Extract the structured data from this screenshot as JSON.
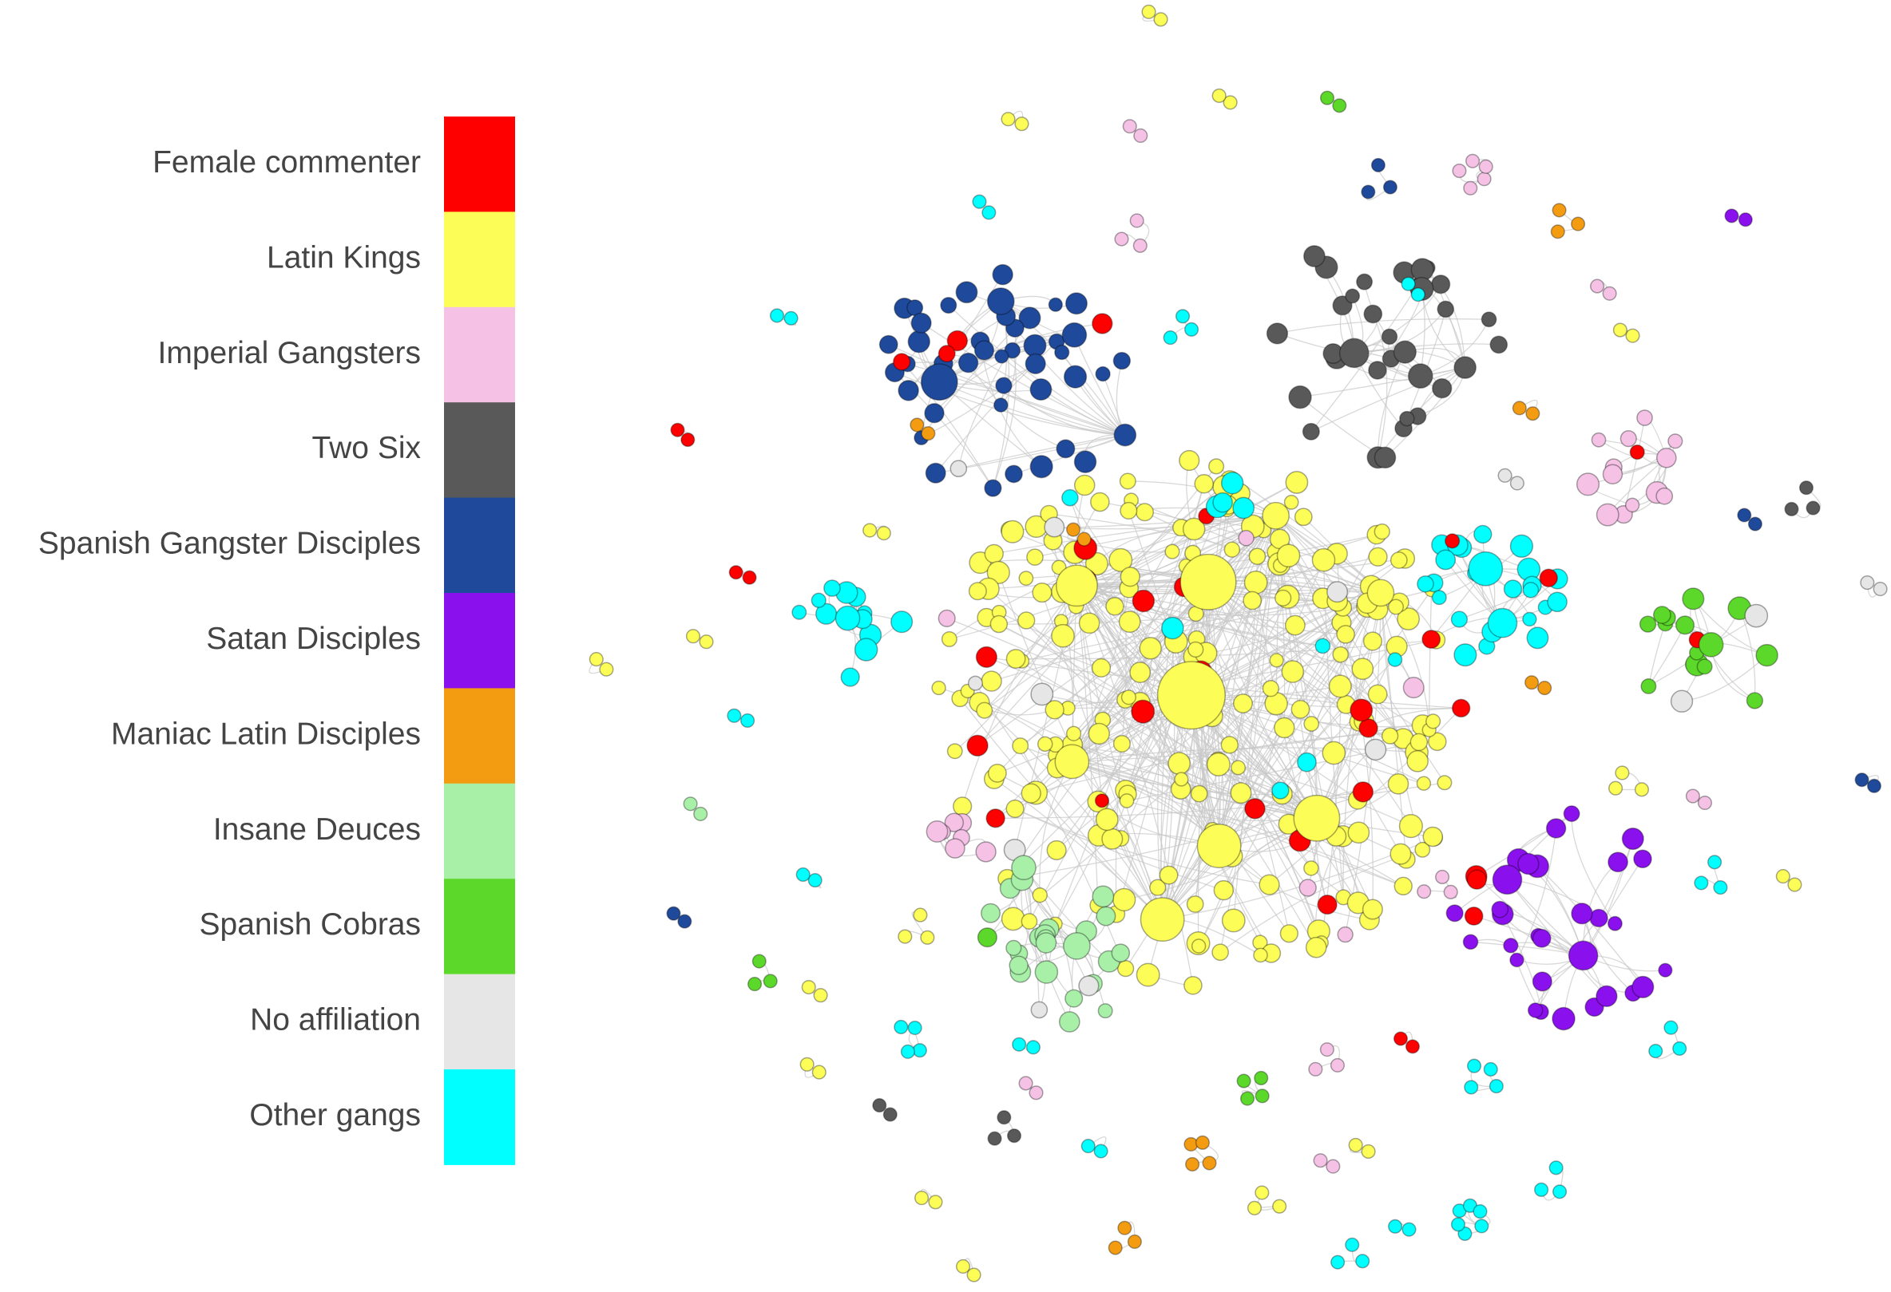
{
  "legend": {
    "items": [
      {
        "label": "Female commenter",
        "color": "#ff0000"
      },
      {
        "label": "Latin Kings",
        "color": "#fdfd58"
      },
      {
        "label": "Imperial Gangsters",
        "color": "#f5c2e6"
      },
      {
        "label": "Two Six",
        "color": "#595959"
      },
      {
        "label": "Spanish Gangster Disciples",
        "color": "#1f4a9c"
      },
      {
        "label": "Satan Disciples",
        "color": "#8a10ee"
      },
      {
        "label": "Maniac Latin Disciples",
        "color": "#f39c12"
      },
      {
        "label": "Insane Deuces",
        "color": "#a8f0a8"
      },
      {
        "label": "Spanish Cobras",
        "color": "#5cd82a"
      },
      {
        "label": "No affiliation",
        "color": "#e6e6e6"
      },
      {
        "label": "Other gangs",
        "color": "#00ffff"
      }
    ]
  }
}
